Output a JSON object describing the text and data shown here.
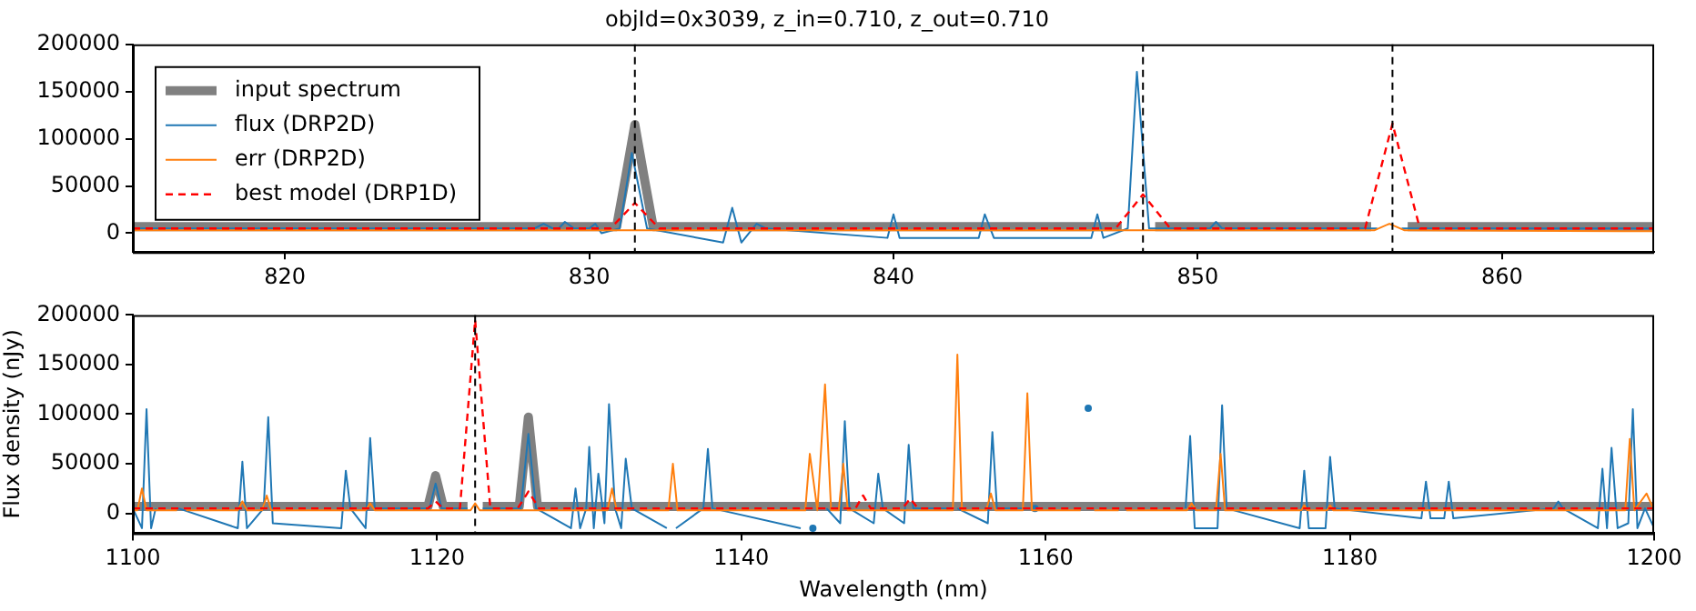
{
  "chart_data": [
    {
      "type": "line",
      "title": "objId=0x3039, z_in=0.710, z_out=0.710",
      "xlim": [
        815,
        865
      ],
      "xticks": [
        820,
        830,
        840,
        850,
        860
      ],
      "ylim": [
        -20000,
        200000
      ],
      "yticks": [
        0,
        50000,
        100000,
        150000,
        200000
      ],
      "legend": "top left",
      "marker": "none",
      "series": [
        {
          "name": "input spectrum",
          "color": "#808080",
          "line_style": "solid",
          "x": [
            815,
            830.9,
            831.2,
            831.5,
            831.8,
            832.1,
            847.5,
            847.8,
            848.0,
            848.3,
            848.6,
            855.7,
            856.0,
            856.3,
            856.6,
            856.9,
            865
          ],
          "values": [
            7000,
            7000,
            60000,
            115000,
            60000,
            7000,
            7000,
            null,
            null,
            null,
            7000,
            7000,
            null,
            null,
            null,
            7000,
            7000
          ]
        },
        {
          "name": "flux (DRP2D)",
          "color": "#1f77b4",
          "line_style": "solid",
          "x": [
            815,
            828.2,
            828.5,
            828.8,
            829.0,
            829.2,
            829.5,
            830.0,
            830.2,
            830.4,
            831.0,
            831.4,
            831.9,
            834.4,
            834.7,
            835.0,
            835.5,
            835.8,
            839.8,
            840.0,
            840.2,
            842.8,
            843.0,
            843.3,
            846.5,
            846.7,
            846.9,
            847.7,
            848.0,
            848.4,
            850.4,
            850.6,
            850.8,
            855.9,
            856.3,
            856.7,
            865
          ],
          "values": [
            5000,
            5000,
            10000,
            5000,
            5000,
            12000,
            5000,
            5000,
            10000,
            0,
            5000,
            85000,
            5000,
            -10000,
            27000,
            -10000,
            10000,
            5000,
            -5000,
            20000,
            -5000,
            -5000,
            20000,
            -5000,
            -5000,
            20000,
            -5000,
            5000,
            171000,
            5000,
            5000,
            12000,
            5000,
            5000,
            null,
            5000,
            5000
          ]
        },
        {
          "name": "err (DRP2D)",
          "color": "#ff7f0e",
          "line_style": "solid",
          "x": [
            815,
            855.8,
            856.3,
            856.8,
            865
          ],
          "values": [
            3000,
            3000,
            10000,
            3000,
            2000
          ]
        },
        {
          "name": "best model (DRP1D)",
          "color": "#ff0000",
          "line_style": "dashed",
          "x": [
            815,
            830.7,
            831.5,
            832.3,
            847.3,
            848.2,
            849.1,
            855.5,
            856.4,
            857.3,
            865
          ],
          "values": [
            5000,
            5000,
            32000,
            5000,
            5000,
            41000,
            5000,
            5000,
            116000,
            5000,
            5000
          ]
        }
      ],
      "ref_lines": [
        {
          "axis": "x",
          "value": 831.5,
          "color": "#000000",
          "line_style": "dashed"
        },
        {
          "axis": "x",
          "value": 848.2,
          "color": "#000000",
          "line_style": "dashed"
        },
        {
          "axis": "x",
          "value": 856.4,
          "color": "#000000",
          "line_style": "dashed"
        }
      ]
    },
    {
      "type": "line",
      "xlabel": "Wavelength (nm)",
      "ylabel": "Flux density (nJy)",
      "xlim": [
        1100,
        1200
      ],
      "xticks": [
        1100,
        1120,
        1140,
        1160,
        1180,
        1200
      ],
      "ylim": [
        -20000,
        200000
      ],
      "yticks": [
        0,
        50000,
        100000,
        150000,
        200000
      ],
      "marker": "none",
      "series": [
        {
          "color": "#808080",
          "line_style": "solid",
          "x": [
            1100,
            1119.4,
            1119.9,
            1120.4,
            1122.0,
            1122.3,
            1122.5,
            1122.7,
            1123.0,
            1125.4,
            1126.0,
            1126.6,
            1200
          ],
          "values": [
            7000,
            7000,
            38000,
            7000,
            7000,
            null,
            null,
            null,
            7000,
            7000,
            97000,
            7000,
            7000
          ]
        },
        {
          "color": "#1f77b4",
          "line_style": "solid",
          "x": [
            1100,
            1100.6,
            1100.9,
            1101.2,
            1101.5,
            1102.4,
            1102.7,
            1103.0,
            1106.9,
            1107.2,
            1107.5,
            1108.6,
            1108.9,
            1109.2,
            1113.7,
            1114.0,
            1114.3,
            1115.3,
            1115.6,
            1115.9,
            1119.5,
            1119.9,
            1120.3,
            1122.0,
            1122.5,
            1123.0,
            1125.5,
            1126.0,
            1126.5,
            1128.8,
            1129.1,
            1129.4,
            1129.8,
            1130.0,
            1130.3,
            1130.6,
            1131.0,
            1131.3,
            1131.7,
            1132.1,
            1132.4,
            1132.8,
            1135.1,
            1135.4,
            1135.7,
            1137.5,
            1137.8,
            1138.1,
            1143.9,
            1144.2,
            1144.7,
            1145.2,
            1145.6,
            1146.5,
            1146.8,
            1147.1,
            1148.7,
            1149.0,
            1149.3,
            1150.7,
            1151.0,
            1151.3,
            1153.6,
            1153.9,
            1154.2,
            1156.2,
            1156.5,
            1156.8,
            1158.7,
            1159.0,
            1159.3,
            1162.5,
            1162.8,
            1163.1,
            1164.8,
            1165.1,
            1165.4,
            1169.2,
            1169.5,
            1169.8,
            1171.3,
            1171.6,
            1171.9,
            1176.7,
            1177.0,
            1177.3,
            1178.4,
            1178.7,
            1179.0,
            1184.7,
            1185.0,
            1185.3,
            1186.2,
            1186.5,
            1186.8,
            1193.4,
            1193.7,
            1194.0,
            1196.3,
            1196.6,
            1196.9,
            1197.2,
            1197.6,
            1198.3,
            1198.6,
            1198.9,
            1199.4,
            1200
          ],
          "values": [
            5000,
            -15000,
            105000,
            -15000,
            5000,
            null,
            null,
            5000,
            -15000,
            52000,
            -15000,
            5000,
            97000,
            -10000,
            -15000,
            43000,
            5000,
            -15000,
            76000,
            5000,
            5000,
            30000,
            5000,
            5000,
            null,
            5000,
            5000,
            80000,
            5000,
            -15000,
            25000,
            -15000,
            5000,
            67000,
            -15000,
            40000,
            -10000,
            110000,
            5000,
            -15000,
            55000,
            5000,
            -15000,
            null,
            -15000,
            5000,
            65000,
            5000,
            -15000,
            null,
            -15000,
            null,
            5000,
            -10000,
            93000,
            5000,
            -10000,
            40000,
            5000,
            -10000,
            69000,
            5000,
            5000,
            null,
            5000,
            -10000,
            82000,
            5000,
            5000,
            null,
            5000,
            null,
            106000,
            null,
            null,
            null,
            null,
            5000,
            78000,
            -15000,
            -15000,
            109000,
            5000,
            -15000,
            43000,
            -15000,
            -15000,
            57000,
            5000,
            -5000,
            32000,
            -5000,
            -5000,
            32000,
            -5000,
            5000,
            12000,
            5000,
            -15000,
            45000,
            -15000,
            66000,
            -15000,
            -10000,
            105000,
            -15000,
            5000,
            -15000
          ]
        },
        {
          "color": "#ff7f0e",
          "line_style": "solid",
          "x": [
            1100,
            1100.3,
            1100.6,
            1100.9,
            1102.9,
            1103.2,
            1103.5,
            1106.9,
            1107.2,
            1107.5,
            1108.5,
            1108.8,
            1109.1,
            1115.3,
            1115.6,
            1115.9,
            1122.2,
            1122.5,
            1122.8,
            1131.2,
            1131.5,
            1131.8,
            1132.7,
            1133.0,
            1133.3,
            1135.2,
            1135.5,
            1135.8,
            1144.2,
            1144.5,
            1145.0,
            1145.5,
            1145.9,
            1146.4,
            1146.7,
            1147.0,
            1153.9,
            1154.2,
            1154.5,
            1156.1,
            1156.4,
            1156.7,
            1158.5,
            1158.8,
            1159.1,
            1162.3,
            1162.6,
            1162.9,
            1163.2,
            1164.8,
            1165.0,
            1165.3,
            1169.3,
            1169.6,
            1169.9,
            1171.2,
            1171.5,
            1171.8,
            1176.8,
            1177.0,
            1177.2,
            1178.5,
            1178.7,
            1178.9,
            1198.1,
            1198.4,
            1198.7,
            1199.5,
            1200
          ],
          "values": [
            3000,
            3000,
            25000,
            3000,
            3000,
            null,
            3000,
            3000,
            12000,
            3000,
            3000,
            18000,
            3000,
            3000,
            10000,
            3000,
            3000,
            10000,
            3000,
            3000,
            25000,
            3000,
            3000,
            null,
            3000,
            3000,
            50000,
            3000,
            3000,
            60000,
            3000,
            130000,
            3000,
            3000,
            50000,
            3000,
            3000,
            160000,
            3000,
            3000,
            20000,
            3000,
            3000,
            121000,
            3000,
            3000,
            null,
            null,
            3000,
            3000,
            null,
            3000,
            3000,
            10000,
            3000,
            3000,
            60000,
            3000,
            3000,
            8000,
            3000,
            3000,
            8000,
            3000,
            3000,
            75000,
            3000,
            20000,
            3000
          ]
        },
        {
          "color": "#ff0000",
          "line_style": "dashed",
          "x": [
            1100,
            1119.4,
            1119.9,
            1120.4,
            1121.5,
            1122.5,
            1123.5,
            1125.3,
            1126.0,
            1126.7,
            1147.5,
            1148.0,
            1148.5,
            1150.6,
            1151.1,
            1151.6,
            1200
          ],
          "values": [
            5000,
            5000,
            12000,
            5000,
            5000,
            195000,
            5000,
            5000,
            22000,
            5000,
            5000,
            18000,
            5000,
            5000,
            15000,
            5000,
            5000
          ]
        }
      ],
      "ref_lines": [
        {
          "axis": "x",
          "value": 1122.5,
          "color": "#000000",
          "line_style": "dashed"
        }
      ]
    }
  ]
}
